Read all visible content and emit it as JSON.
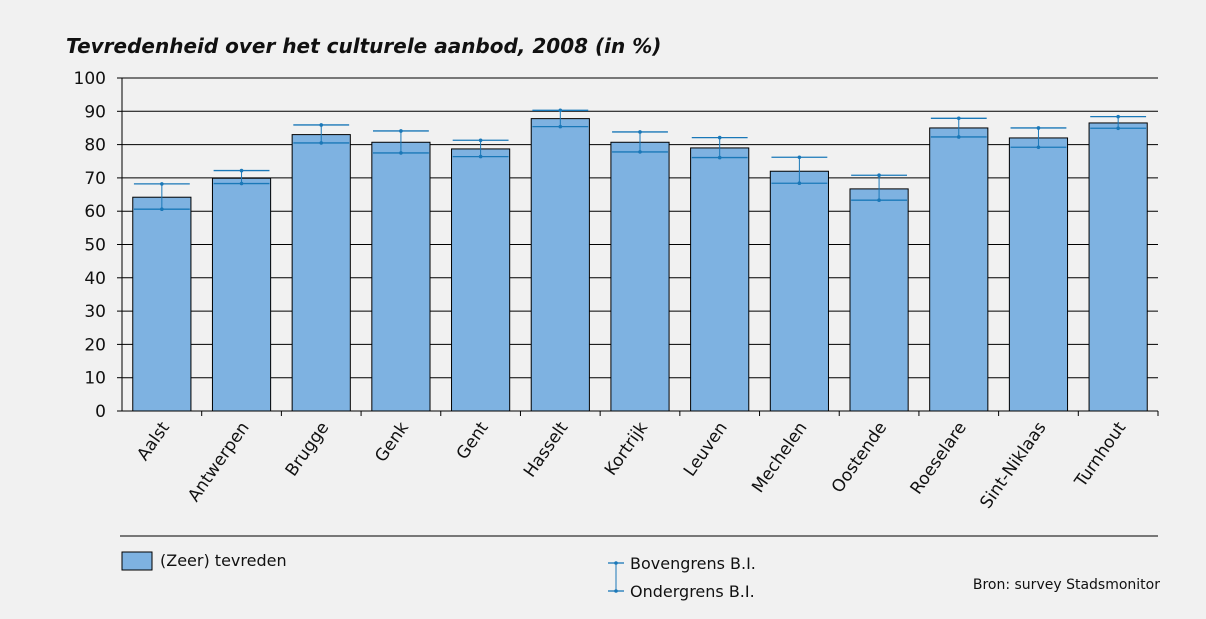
{
  "chart_data": {
    "type": "bar",
    "title": "Tevredenheid over het culturele aanbod, 2008 (in %)",
    "categories": [
      "Aalst",
      "Antwerpen",
      "Brugge",
      "Genk",
      "Gent",
      "Hasselt",
      "Kortrijk",
      "Leuven",
      "Mechelen",
      "Oostende",
      "Roeselare",
      "Sint-Niklaas",
      "Turnhout"
    ],
    "series": [
      {
        "name": "(Zeer) tevreden",
        "values": [
          64.2,
          69.9,
          83.0,
          80.7,
          78.7,
          87.8,
          80.7,
          79.0,
          72.0,
          66.7,
          85.0,
          82.0,
          86.5
        ]
      }
    ],
    "ci_upper": [
      68.2,
      72.2,
      85.9,
      84.1,
      81.3,
      90.3,
      83.8,
      82.1,
      76.2,
      70.8,
      87.9,
      85.0,
      88.4
    ],
    "ci_lower": [
      60.6,
      68.3,
      80.5,
      77.5,
      76.4,
      85.4,
      77.8,
      76.1,
      68.4,
      63.3,
      82.3,
      79.2,
      84.9
    ],
    "yticks": [
      "0",
      "10",
      "20",
      "30",
      "40",
      "50",
      "60",
      "70",
      "80",
      "90",
      "100"
    ],
    "ylim": [
      0,
      100
    ],
    "grid": true,
    "legend_position": "bottom",
    "colors": {
      "bar": "#7eb2e1",
      "bar_edge": "#000000",
      "ci": "#1a78b8",
      "grid": "#000000"
    }
  },
  "legend": {
    "bar_label": "(Zeer) tevreden",
    "upper_label": "Bovengrens B.I.",
    "lower_label": "Ondergrens B.I."
  },
  "source": "Bron: survey Stadsmonitor"
}
